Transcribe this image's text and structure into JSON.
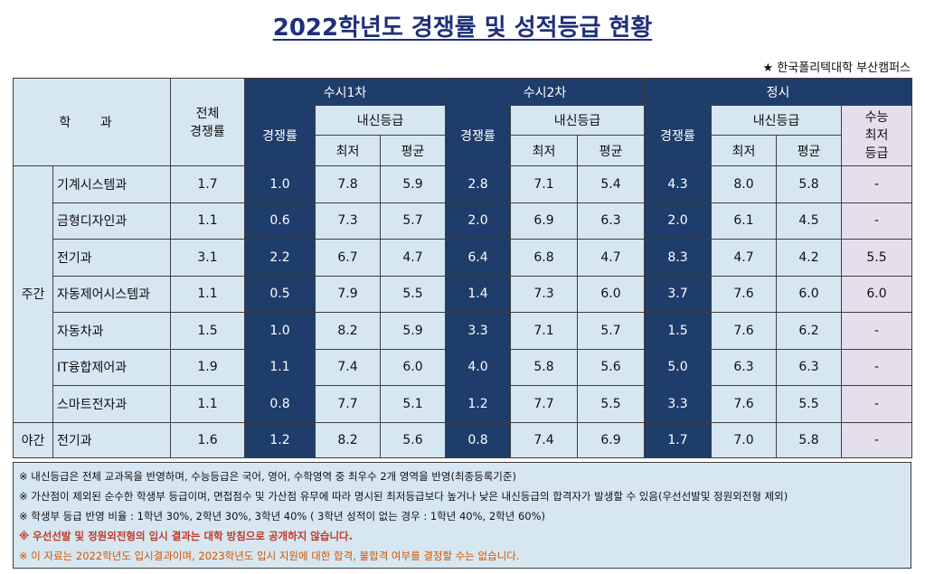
{
  "title": "2022학년도 경쟁률 및 성적등급 현황",
  "source": "★ 한국폴리텍대학 부산캠퍼스",
  "header": {
    "dept": "학  과",
    "total": "전체\n경쟁률",
    "susi1": "수시1차",
    "susi2": "수시2차",
    "jungsi": "정시",
    "ratio": "경쟁률",
    "grade": "내신등급",
    "min": "최저",
    "avg": "평균",
    "csat": "수능\n최저\n등급"
  },
  "groups": {
    "day": "주간",
    "night": "야간"
  },
  "rows": [
    {
      "dept": "기계시스템과",
      "total": "1.7",
      "s1r": "1.0",
      "s1min": "7.8",
      "s1avg": "5.9",
      "s2r": "2.8",
      "s2min": "7.1",
      "s2avg": "5.4",
      "jr": "4.3",
      "jmin": "8.0",
      "javg": "5.8",
      "csat": "-"
    },
    {
      "dept": "금형디자인과",
      "total": "1.1",
      "s1r": "0.6",
      "s1min": "7.3",
      "s1avg": "5.7",
      "s2r": "2.0",
      "s2min": "6.9",
      "s2avg": "6.3",
      "jr": "2.0",
      "jmin": "6.1",
      "javg": "4.5",
      "csat": "-"
    },
    {
      "dept": "전기과",
      "total": "3.1",
      "s1r": "2.2",
      "s1min": "6.7",
      "s1avg": "4.7",
      "s2r": "6.4",
      "s2min": "6.8",
      "s2avg": "4.7",
      "jr": "8.3",
      "jmin": "4.7",
      "javg": "4.2",
      "csat": "5.5"
    },
    {
      "dept": "자동제어시스템과",
      "total": "1.1",
      "s1r": "0.5",
      "s1min": "7.9",
      "s1avg": "5.5",
      "s2r": "1.4",
      "s2min": "7.3",
      "s2avg": "6.0",
      "jr": "3.7",
      "jmin": "7.6",
      "javg": "6.0",
      "csat": "6.0"
    },
    {
      "dept": "자동차과",
      "total": "1.5",
      "s1r": "1.0",
      "s1min": "8.2",
      "s1avg": "5.9",
      "s2r": "3.3",
      "s2min": "7.1",
      "s2avg": "5.7",
      "jr": "1.5",
      "jmin": "7.6",
      "javg": "6.2",
      "csat": "-"
    },
    {
      "dept": "IT융합제어과",
      "total": "1.9",
      "s1r": "1.1",
      "s1min": "7.4",
      "s1avg": "6.0",
      "s2r": "4.0",
      "s2min": "5.8",
      "s2avg": "5.6",
      "jr": "5.0",
      "jmin": "6.3",
      "javg": "6.3",
      "csat": "-"
    },
    {
      "dept": "스마트전자과",
      "total": "1.1",
      "s1r": "0.8",
      "s1min": "7.7",
      "s1avg": "5.1",
      "s2r": "1.2",
      "s2min": "7.7",
      "s2avg": "5.5",
      "jr": "3.3",
      "jmin": "7.6",
      "javg": "5.5",
      "csat": "-"
    },
    {
      "dept": "전기과",
      "total": "1.6",
      "s1r": "1.2",
      "s1min": "8.2",
      "s1avg": "5.6",
      "s2r": "0.8",
      "s2min": "7.4",
      "s2avg": "6.9",
      "jr": "1.7",
      "jmin": "7.0",
      "javg": "5.8",
      "csat": "-"
    }
  ],
  "notes": [
    "※ 내신등급은 전체 교과목을 반영하며, 수능등급은 국어, 영어, 수학영역 중 최우수 2개 영역을 반영(최종등록기준)",
    "※ 가산점이 제외된 순수한 학생부 등급이며, 면접점수 및 가산점 유무에 따라 명시된 최저등급보다 높거나 낮은 내신등급의 합격자가 발생할 수 있음(우선선발및 정원외전형 제외)",
    "※ 학생부 등급 반영 비율 : 1학년 30%, 2학년 30%, 3학년 40% ( 3학년 성적이 없는 경우 : 1학년 40%, 2학년 60%)",
    "※ 우선선발 및 정원외전형의 입시 결과는 대학 방침으로 공개하지 않습니다.",
    "※ 이 자료는 2022학년도 입시결과이며, 2023학년도 입시 지원에 대한 합격, 불합격 여부를 결정할 수는 없습니다."
  ],
  "colors": {
    "title": "#1f2f7a",
    "dark": "#1f3d6b",
    "light": "#d6e7f1",
    "purple": "#e5dfec",
    "note_red": "#c0392b",
    "note_orange": "#d35400"
  }
}
